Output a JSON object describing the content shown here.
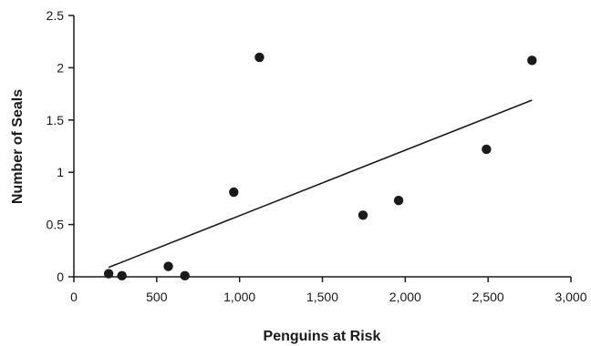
{
  "chart_data": {
    "type": "scatter",
    "title": "",
    "xlabel": "Penguins at Risk",
    "ylabel": "Number of Seals",
    "xlim": [
      0,
      3000
    ],
    "ylim": [
      0,
      2.5
    ],
    "x_ticks": [
      0,
      500,
      1000,
      1500,
      2000,
      2500,
      3000
    ],
    "x_tick_labels": [
      "0",
      "500",
      "1,000",
      "1,500",
      "2,000",
      "2,500",
      "3,000"
    ],
    "y_ticks": [
      0,
      0.5,
      1,
      1.5,
      2,
      2.5
    ],
    "y_tick_labels": [
      "0",
      "0.5",
      "1",
      "1.5",
      "2",
      "2.5"
    ],
    "grid": false,
    "legend": "none",
    "colors": {
      "points": "#1a1a1a",
      "trendline": "#1a1a1a",
      "axis": "#1a1a1a"
    },
    "points": [
      {
        "x": 210,
        "y": 0.03
      },
      {
        "x": 290,
        "y": 0.01
      },
      {
        "x": 570,
        "y": 0.1
      },
      {
        "x": 670,
        "y": 0.01
      },
      {
        "x": 965,
        "y": 0.81
      },
      {
        "x": 1120,
        "y": 2.1
      },
      {
        "x": 1745,
        "y": 0.59
      },
      {
        "x": 1960,
        "y": 0.73
      },
      {
        "x": 2490,
        "y": 1.22
      },
      {
        "x": 2765,
        "y": 2.07
      }
    ],
    "trendline": {
      "type": "linear",
      "x": [
        210,
        2765
      ],
      "y": [
        0.09,
        1.69
      ]
    }
  }
}
